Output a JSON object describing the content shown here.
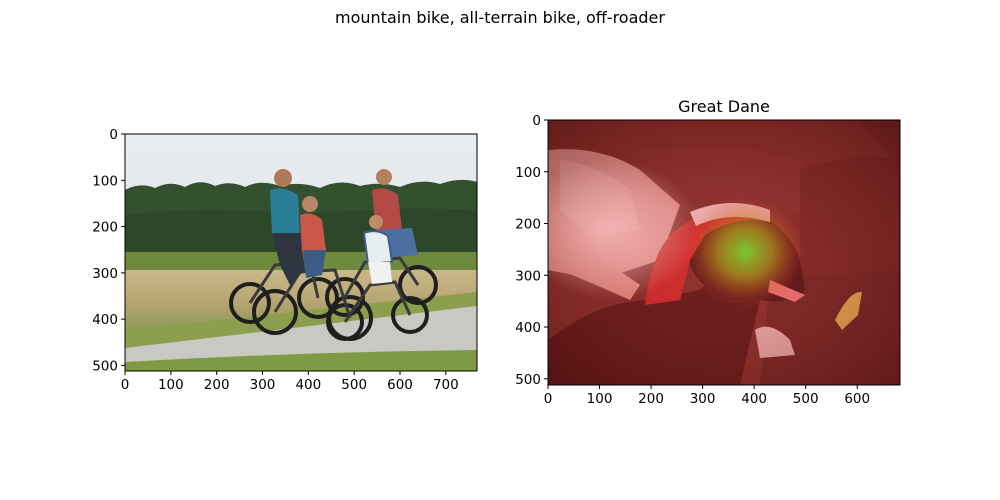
{
  "figure": {
    "suptitle": "mountain bike, all-terrain bike, off-roader"
  },
  "chart_data": [
    {
      "type": "image",
      "title": "",
      "image_description": "photo of a family riding bicycles on a path",
      "xlim": [
        0,
        768
      ],
      "ylim": [
        512,
        0
      ],
      "xticks": [
        0,
        100,
        200,
        300,
        400,
        500,
        600,
        700
      ],
      "yticks": [
        0,
        100,
        200,
        300,
        400,
        500
      ]
    },
    {
      "type": "image",
      "title": "Great Dane",
      "image_description": "dog wearing a Santa hat on a couch with a red saliency heatmap overlay",
      "xlim": [
        0,
        683
      ],
      "ylim": [
        512,
        0
      ],
      "xticks": [
        0,
        100,
        200,
        300,
        400,
        500,
        600
      ],
      "yticks": [
        0,
        100,
        200,
        300,
        400,
        500
      ]
    }
  ]
}
